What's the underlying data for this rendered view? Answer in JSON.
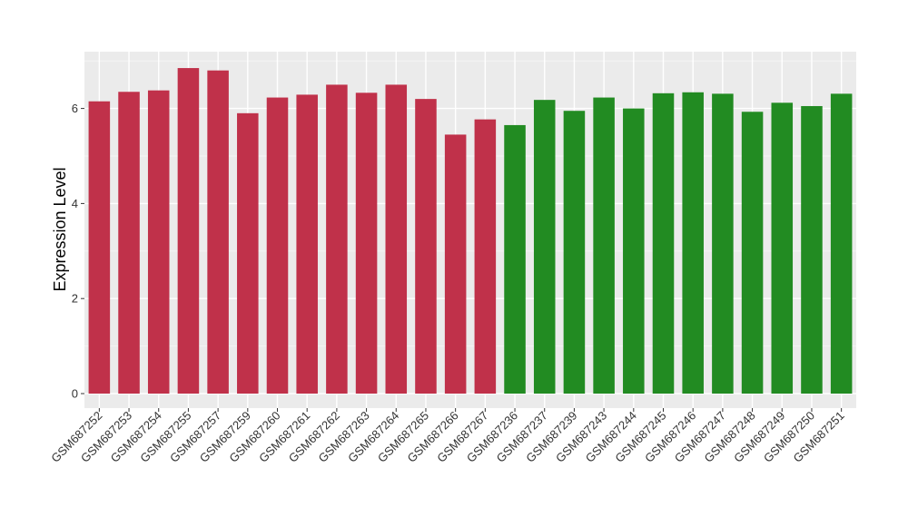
{
  "chart_data": {
    "type": "bar",
    "title": "",
    "xlabel": "",
    "ylabel": "Expression Level",
    "ylim": [
      0,
      7.2
    ],
    "yticks": [
      0,
      2,
      4,
      6
    ],
    "grid": true,
    "legend": "none",
    "colors": {
      "group1": "#c0314a",
      "group2": "#228b22",
      "panel": "#ebebeb",
      "gridline": "#ffffff"
    },
    "categories": [
      "GSM687252",
      "GSM687253",
      "GSM687254",
      "GSM687255",
      "GSM687257",
      "GSM687259",
      "GSM687260",
      "GSM687261",
      "GSM687262",
      "GSM687263",
      "GSM687264",
      "GSM687265",
      "GSM687266",
      "GSM687267",
      "GSM687236",
      "GSM687237",
      "GSM687239",
      "GSM687243",
      "GSM687244",
      "GSM687245",
      "GSM687246",
      "GSM687247",
      "GSM687248",
      "GSM687249",
      "GSM687250",
      "GSM687251"
    ],
    "values": [
      6.15,
      6.35,
      6.38,
      6.85,
      6.8,
      5.9,
      6.23,
      6.29,
      6.5,
      6.33,
      6.5,
      6.2,
      5.45,
      5.77,
      5.65,
      6.18,
      5.95,
      6.23,
      6.0,
      6.32,
      6.34,
      6.31,
      5.93,
      6.12,
      6.05,
      6.31
    ],
    "groups": [
      1,
      1,
      1,
      1,
      1,
      1,
      1,
      1,
      1,
      1,
      1,
      1,
      1,
      1,
      2,
      2,
      2,
      2,
      2,
      2,
      2,
      2,
      2,
      2,
      2,
      2
    ]
  }
}
